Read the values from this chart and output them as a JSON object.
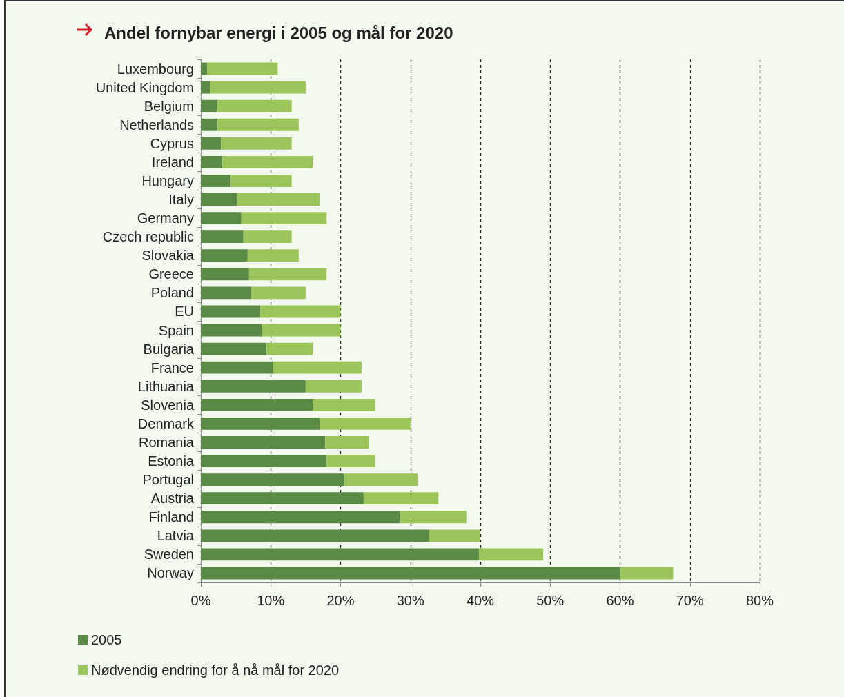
{
  "chart_data": {
    "type": "bar",
    "orientation": "horizontal",
    "stacked": true,
    "title": "Andel fornybar energi i 2005 og mål for 2020",
    "categories": [
      "Luxembourg",
      "United Kingdom",
      "Belgium",
      "Netherlands",
      "Cyprus",
      "Ireland",
      "Hungary",
      "Italy",
      "Germany",
      "Czech republic",
      "Slovakia",
      "Greece",
      "Poland",
      "EU",
      "Spain",
      "Bulgaria",
      "France",
      "Lithuania",
      "Slovenia",
      "Denmark",
      "Romania",
      "Estonia",
      "Portugal",
      "Austria",
      "Finland",
      "Latvia",
      "Sweden",
      "Norway"
    ],
    "series": [
      {
        "name": "2005",
        "color": "#5a8a46",
        "values": [
          0.9,
          1.3,
          2.3,
          2.4,
          2.9,
          3.1,
          4.3,
          5.2,
          5.8,
          6.1,
          6.7,
          6.9,
          7.2,
          8.5,
          8.7,
          9.4,
          10.3,
          15,
          16,
          17,
          17.8,
          18,
          20.5,
          23.3,
          28.5,
          32.6,
          39.8,
          60
        ]
      },
      {
        "name": "Nødvendig endring for å nå mål for 2020",
        "color": "#9bc45a",
        "values": [
          10.1,
          13.7,
          10.7,
          11.6,
          10.1,
          12.9,
          8.7,
          11.8,
          12.2,
          6.9,
          7.3,
          11.1,
          7.8,
          11.5,
          11.3,
          6.6,
          12.7,
          8,
          9,
          13,
          6.2,
          7,
          10.5,
          10.7,
          9.5,
          7.4,
          9.2,
          7.6
        ]
      }
    ],
    "xlim": [
      0,
      80
    ],
    "xticks": [
      {
        "value": 0,
        "label": "0%"
      },
      {
        "value": 10,
        "label": "10%"
      },
      {
        "value": 20,
        "label": "20%"
      },
      {
        "value": 30,
        "label": "30%"
      },
      {
        "value": 40,
        "label": "40%"
      },
      {
        "value": 50,
        "label": "50%"
      },
      {
        "value": 60,
        "label": "60%"
      },
      {
        "value": 70,
        "label": "70%"
      },
      {
        "value": 80,
        "label": "80%"
      }
    ],
    "grid": "x",
    "legend": "bottom left"
  }
}
